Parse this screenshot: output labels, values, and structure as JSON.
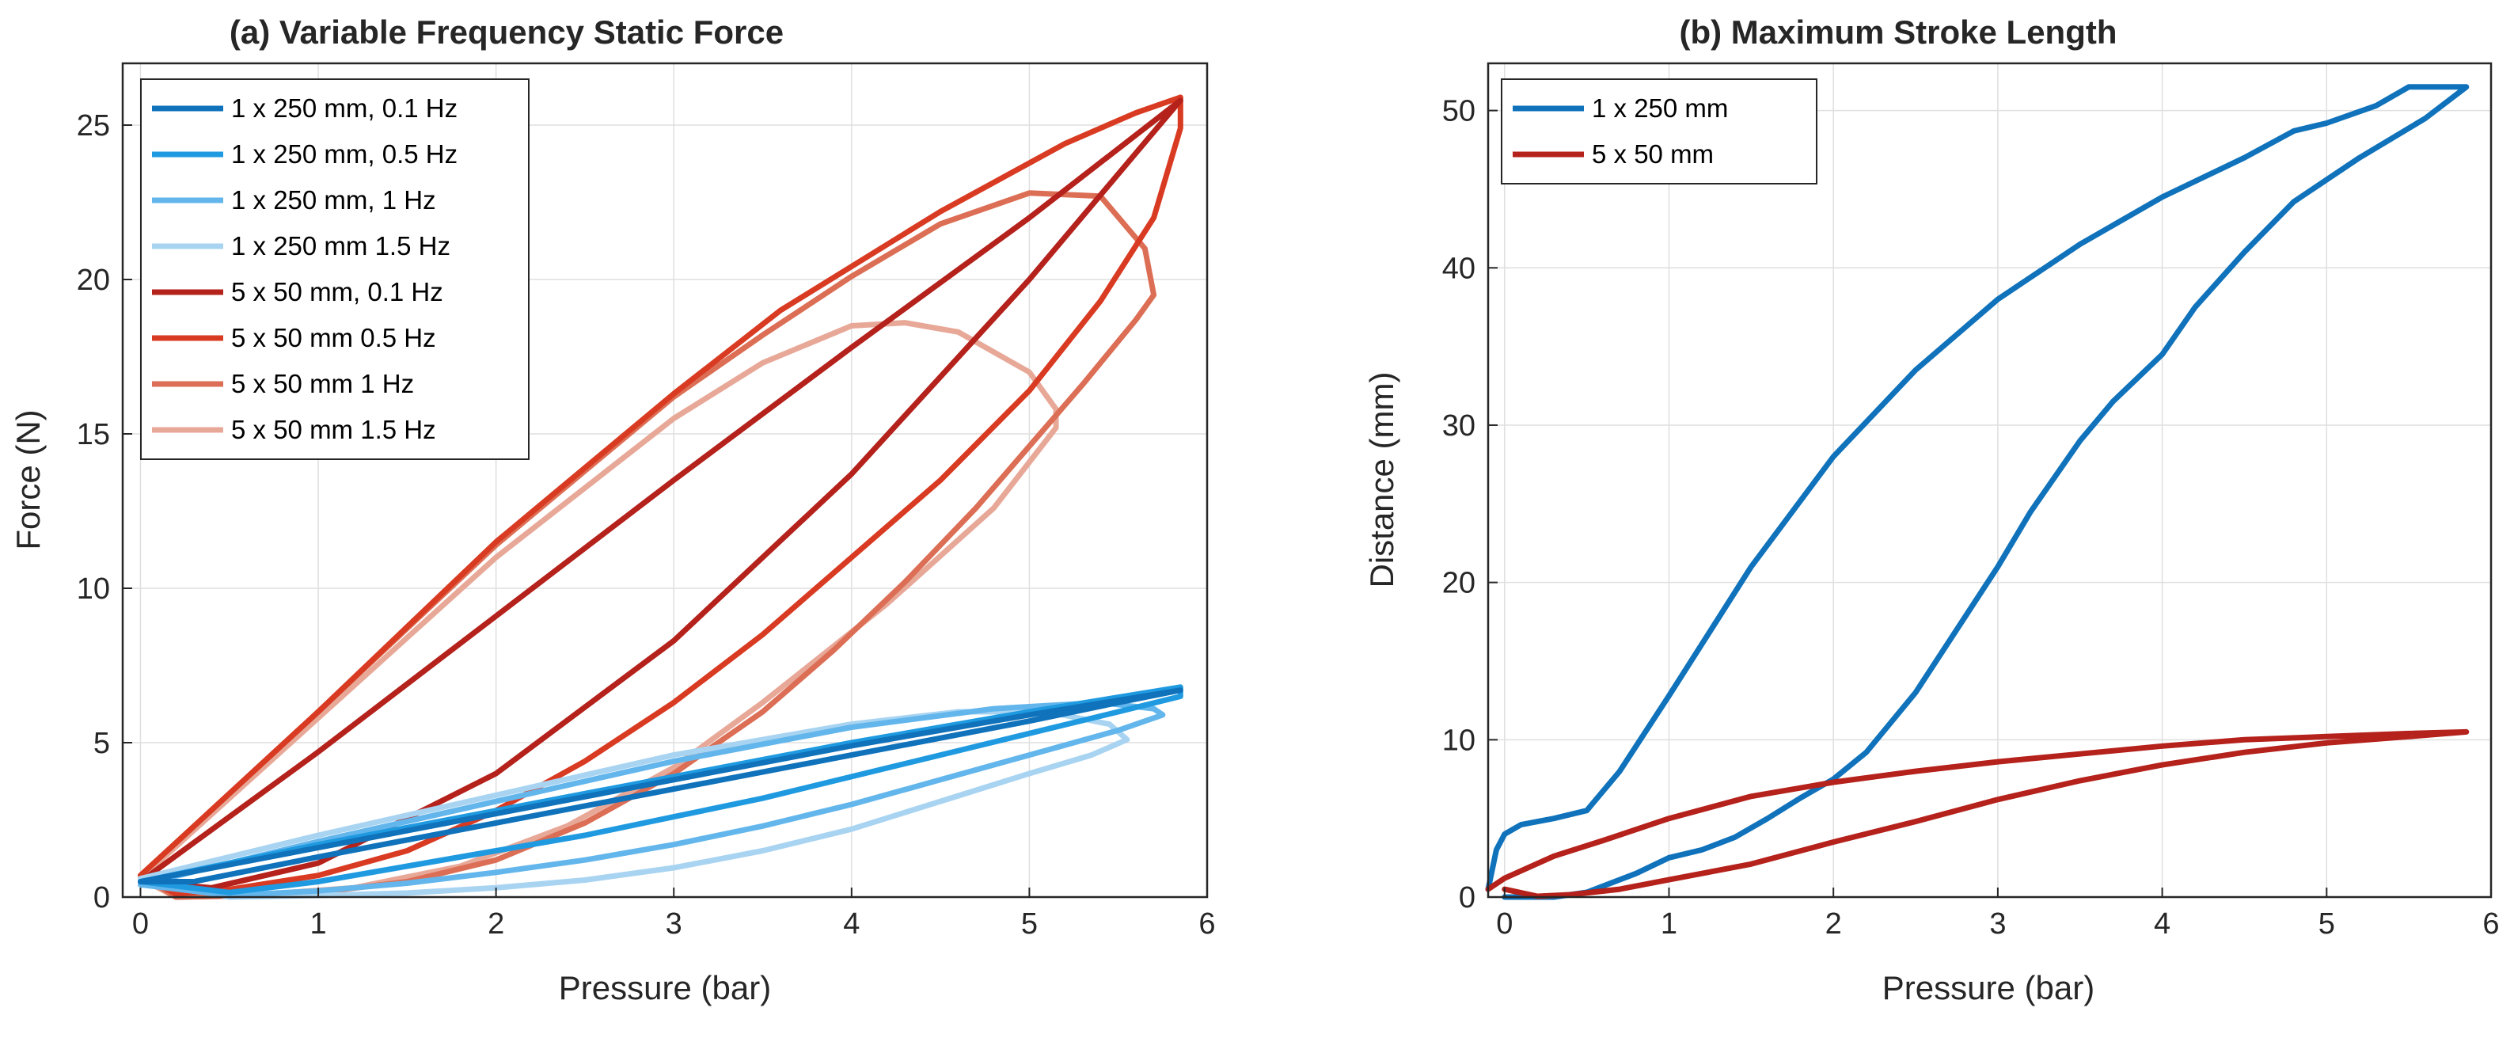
{
  "chart_data": [
    {
      "type": "line",
      "title": "(a) Variable Frequency Static Force",
      "xlabel": "Pressure (bar)",
      "ylabel": "Force (N)",
      "xlim": [
        -0.1,
        6
      ],
      "ylim": [
        0,
        27
      ],
      "xticks": [
        0,
        1,
        2,
        3,
        4,
        5,
        6
      ],
      "yticks": [
        0,
        5,
        10,
        15,
        20,
        25
      ],
      "grid": true,
      "legend_position": "top-left",
      "series": [
        {
          "name": "5 x 50 mm 1.5 Hz",
          "color": "#e8a898",
          "x": [
            0,
            1,
            2,
            3,
            3.5,
            4,
            4.3,
            4.6,
            5.0,
            5.15,
            5.15,
            4.8,
            4.2,
            3.5,
            3.0,
            2.4,
            1.8,
            1.2,
            0.6,
            0.2,
            0
          ],
          "y": [
            0.6,
            5.8,
            11.0,
            15.5,
            17.3,
            18.5,
            18.6,
            18.3,
            17.0,
            15.8,
            15.2,
            12.6,
            9.5,
            6.3,
            4.2,
            2.3,
            1.0,
            0.3,
            0.05,
            0,
            0.6
          ]
        },
        {
          "name": "5 x 50 mm 1 Hz",
          "color": "#dc6e55",
          "x": [
            0,
            1,
            2,
            3,
            3.5,
            4,
            4.5,
            5.0,
            5.4,
            5.65,
            5.7,
            5.6,
            5.3,
            5.0,
            4.7,
            4.3,
            3.9,
            3.5,
            3.0,
            2.5,
            2.0,
            1.5,
            1.0,
            0.5,
            0.2,
            0
          ],
          "y": [
            0.7,
            6.0,
            11.4,
            16.2,
            18.2,
            20.1,
            21.8,
            22.8,
            22.7,
            21.0,
            19.5,
            18.7,
            16.6,
            14.6,
            12.6,
            10.2,
            8.0,
            6.0,
            4.0,
            2.4,
            1.2,
            0.5,
            0.15,
            0.03,
            0,
            0.7
          ]
        },
        {
          "name": "5 x 50 mm 0.5 Hz",
          "color": "#d93a22",
          "x": [
            0,
            1,
            2,
            3,
            3.6,
            4.5,
            5.2,
            5.6,
            5.85,
            5.85,
            5.7,
            5.4,
            5.0,
            4.5,
            4.0,
            3.5,
            3.0,
            2.5,
            2.0,
            1.5,
            1.0,
            0.5,
            0.2,
            0
          ],
          "y": [
            0.7,
            6.0,
            11.5,
            16.3,
            19.0,
            22.2,
            24.4,
            25.4,
            25.9,
            24.9,
            22.0,
            19.3,
            16.4,
            13.5,
            11.0,
            8.5,
            6.3,
            4.4,
            2.8,
            1.5,
            0.7,
            0.25,
            0.1,
            0.7
          ]
        },
        {
          "name": "5 x 50 mm, 0.1 Hz",
          "color": "#b5211b",
          "x": [
            0,
            1,
            2,
            3,
            4,
            5,
            5.85,
            5.6,
            5.0,
            4.0,
            3.0,
            2.0,
            1.0,
            0.4,
            0
          ],
          "y": [
            0.5,
            4.7,
            9.1,
            13.5,
            17.8,
            22.0,
            25.8,
            24.1,
            20.0,
            13.7,
            8.3,
            4.0,
            1.1,
            0.3,
            0.5
          ]
        },
        {
          "name": "1 x 250 mm 1.5 Hz",
          "color": "#a8d4f2",
          "x": [
            0,
            1,
            2,
            3,
            4,
            4.6,
            5.1,
            5.45,
            5.55,
            5.35,
            5.0,
            4.5,
            4.0,
            3.5,
            3.0,
            2.5,
            2.0,
            1.5,
            1.0,
            0.5,
            0
          ],
          "y": [
            0.6,
            2.0,
            3.3,
            4.6,
            5.6,
            6.0,
            6.0,
            5.6,
            5.1,
            4.6,
            4.0,
            3.1,
            2.2,
            1.5,
            0.95,
            0.55,
            0.3,
            0.13,
            0.05,
            0,
            0.6
          ]
        },
        {
          "name": "1 x 250 mm, 1 Hz",
          "color": "#63b6ec",
          "x": [
            0,
            1,
            2,
            3,
            4,
            4.8,
            5.4,
            5.7,
            5.75,
            5.5,
            5.0,
            4.5,
            4.0,
            3.5,
            3.0,
            2.5,
            2.0,
            1.5,
            1.0,
            0.5,
            0
          ],
          "y": [
            0.4,
            1.8,
            3.1,
            4.4,
            5.5,
            6.1,
            6.3,
            6.1,
            5.9,
            5.4,
            4.6,
            3.8,
            3.0,
            2.3,
            1.7,
            1.2,
            0.8,
            0.45,
            0.2,
            0.05,
            0.4
          ]
        },
        {
          "name": "1 x 250 mm, 0.5 Hz",
          "color": "#1f9ae0",
          "x": [
            0,
            1,
            2,
            3,
            4,
            5,
            5.85,
            5.85,
            5.5,
            5.0,
            4.5,
            4.0,
            3.5,
            3.0,
            2.5,
            2.0,
            1.5,
            1.0,
            0.5,
            0
          ],
          "y": [
            0.5,
            1.7,
            2.8,
            3.9,
            5.0,
            6.0,
            6.8,
            6.5,
            6.0,
            5.3,
            4.6,
            3.9,
            3.2,
            2.6,
            2.0,
            1.5,
            1.0,
            0.5,
            0.15,
            0.5
          ]
        },
        {
          "name": "1 x 250 mm, 0.1 Hz",
          "color": "#0f72bb",
          "x": [
            0,
            1,
            2,
            3,
            4,
            5,
            5.85,
            5.5,
            5.0,
            4.0,
            3.0,
            2.0,
            1.0,
            0.3,
            0
          ],
          "y": [
            0.5,
            1.6,
            2.7,
            3.8,
            4.9,
            5.9,
            6.7,
            6.3,
            5.7,
            4.6,
            3.5,
            2.4,
            1.3,
            0.5,
            0.5
          ]
        }
      ],
      "legend_order": [
        "1 x 250 mm, 0.1 Hz",
        "1 x 250 mm, 0.5 Hz",
        "1 x 250 mm, 1 Hz",
        "1 x 250 mm 1.5 Hz",
        "5 x 50 mm, 0.1 Hz",
        "5 x 50 mm 0.5 Hz",
        "5 x 50 mm 1 Hz",
        "5 x 50 mm 1.5 Hz"
      ]
    },
    {
      "type": "line",
      "title": "(b) Maximum Stroke Length",
      "xlabel": "Pressure (bar)",
      "ylabel": "Distance (mm)",
      "xlim": [
        -0.1,
        6
      ],
      "ylim": [
        0,
        53
      ],
      "xticks": [
        0,
        1,
        2,
        3,
        4,
        5,
        6
      ],
      "yticks": [
        0,
        10,
        20,
        30,
        40,
        50
      ],
      "grid": true,
      "legend_position": "top-left",
      "series": [
        {
          "name": "1 x 250 mm",
          "color": "#0f72bb",
          "x": [
            -0.1,
            -0.05,
            0,
            0.1,
            0.3,
            0.5,
            0.7,
            1.0,
            1.5,
            2.0,
            2.5,
            3.0,
            3.5,
            4.0,
            4.5,
            4.8,
            5.0,
            5.3,
            5.5,
            5.85,
            5.6,
            5.2,
            4.8,
            4.5,
            4.2,
            4.0,
            3.7,
            3.5,
            3.2,
            3.0,
            2.8,
            2.5,
            2.2,
            2.0,
            1.8,
            1.6,
            1.4,
            1.2,
            1.0,
            0.8,
            0.5,
            0.3,
            0.1,
            0
          ],
          "y": [
            0.5,
            3.0,
            4.0,
            4.6,
            5.0,
            5.5,
            8.0,
            12.8,
            21.0,
            28.0,
            33.5,
            38.0,
            41.5,
            44.5,
            47.0,
            48.7,
            49.2,
            50.3,
            51.5,
            51.5,
            49.5,
            47.0,
            44.2,
            41.0,
            37.5,
            34.5,
            31.5,
            29.0,
            24.5,
            21.0,
            17.8,
            13.0,
            9.2,
            7.5,
            6.3,
            5.0,
            3.8,
            3.0,
            2.5,
            1.5,
            0.3,
            0,
            0,
            0
          ]
        },
        {
          "name": "5 x 50 mm",
          "color": "#b5211b",
          "x": [
            -0.1,
            0,
            0.3,
            0.6,
            1.0,
            1.5,
            2.0,
            2.5,
            3.0,
            3.5,
            4.0,
            4.5,
            5.0,
            5.5,
            5.85,
            5.5,
            5.0,
            4.5,
            4.0,
            3.5,
            3.0,
            2.5,
            2.0,
            1.5,
            1.0,
            0.7,
            0.4,
            0.2,
            0
          ],
          "y": [
            0.5,
            1.2,
            2.6,
            3.6,
            5.0,
            6.4,
            7.3,
            8.0,
            8.6,
            9.1,
            9.6,
            10.0,
            10.2,
            10.4,
            10.5,
            10.2,
            9.8,
            9.2,
            8.4,
            7.4,
            6.2,
            4.8,
            3.5,
            2.1,
            1.1,
            0.5,
            0.15,
            0.05,
            0.5
          ]
        }
      ],
      "legend_order": [
        "1 x 250 mm",
        "5 x 50 mm"
      ]
    }
  ]
}
